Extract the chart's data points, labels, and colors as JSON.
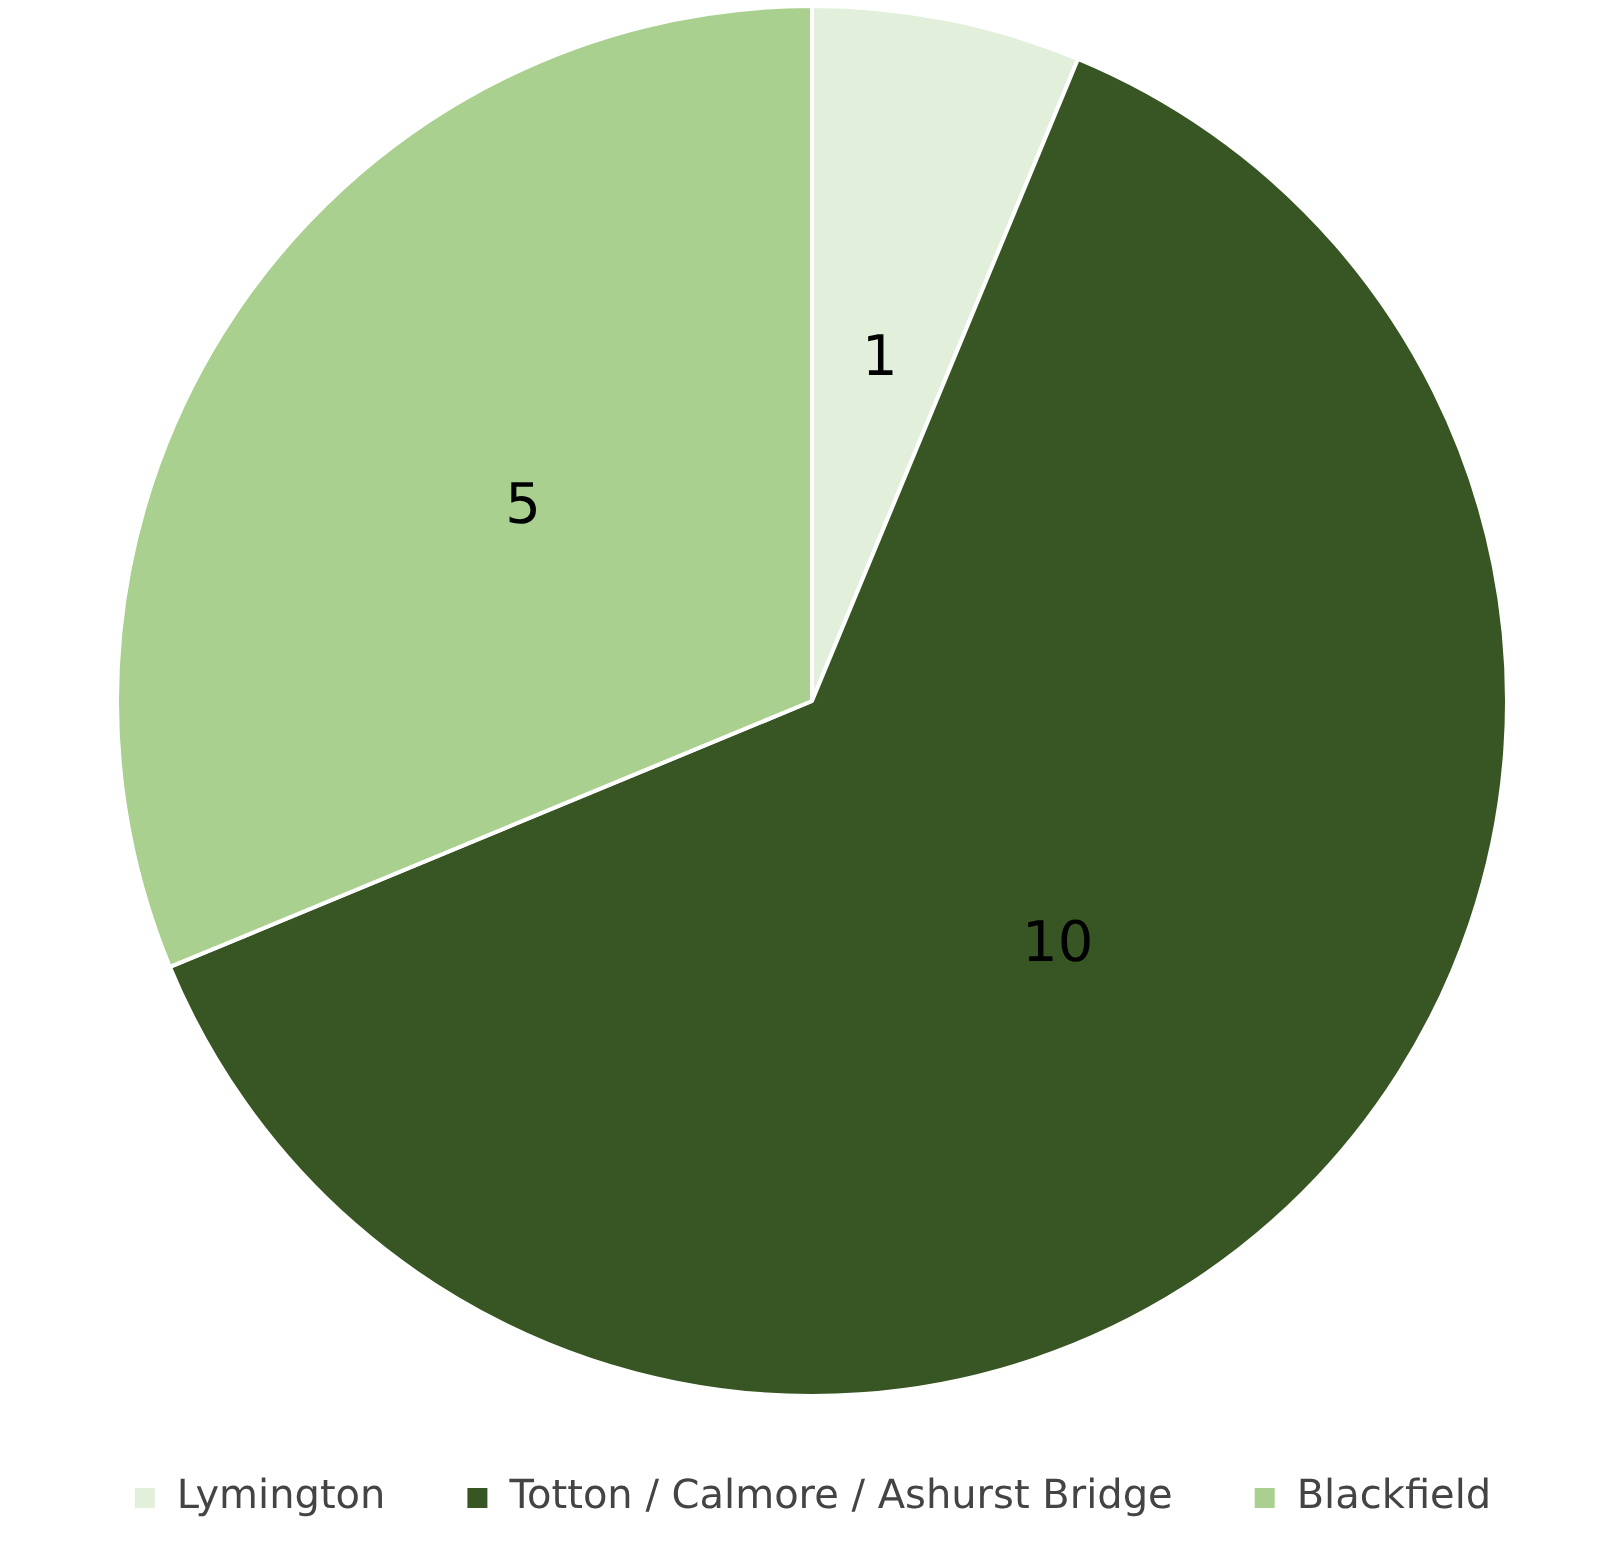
{
  "chart_data": {
    "type": "pie",
    "categories": [
      "Lymington",
      "Totton / Calmore / Ashurst Bridge",
      "Blackfield"
    ],
    "values": [
      1,
      10,
      5
    ],
    "colors": [
      "#e2efda",
      "#375623",
      "#a9d08e"
    ],
    "data_labels": true,
    "legend": "bottom"
  }
}
